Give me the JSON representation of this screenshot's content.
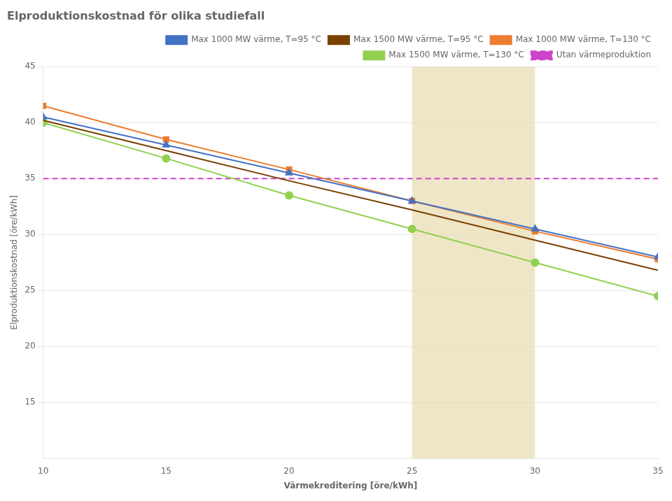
{
  "chart_data": {
    "type": "line",
    "title": "Elproduktionskostnad för olika studiefall",
    "x_label": "Värmekreditering [öre/kWh]",
    "y_label": "Elproduktionskostnad [öre/kWh]",
    "xlim": [
      10,
      35
    ],
    "ylim": [
      10,
      45
    ],
    "xticks": [
      10,
      15,
      20,
      25,
      30,
      35
    ],
    "yticks": [
      15,
      20,
      25,
      30,
      35,
      40,
      45
    ],
    "grid": "y",
    "legend": "upper right",
    "hlines": [
      {
        "name": "Utan värmeproduktion",
        "y": 35.0,
        "color": "#cc44cc",
        "line_style": "dashed"
      }
    ],
    "shaded_x": [
      {
        "from": 25,
        "to": 30,
        "color": "#e8dbb0"
      }
    ],
    "x": [
      10,
      15,
      20,
      25,
      30,
      35
    ],
    "series": [
      {
        "name": "Max 1000 MW värme, T=95 °C",
        "color": "#4472c4",
        "marker": "triangle",
        "values": [
          40.5,
          38.0,
          35.5,
          33.0,
          30.5,
          28.0
        ]
      },
      {
        "name": "Max 1500 MW värme, T=95 °C",
        "color": "#7b3f00",
        "marker": "none",
        "values": [
          40.2,
          37.5,
          34.8,
          32.2,
          29.5,
          26.8
        ]
      },
      {
        "name": "Max 1000 MW värme, T=130 °C",
        "color": "#ed7d31",
        "marker": "square",
        "values": [
          41.5,
          38.5,
          35.8,
          33.0,
          30.3,
          27.8
        ]
      },
      {
        "name": "Max 1500 MW värme, T=130 °C",
        "color": "#92d050",
        "marker": "circle",
        "values": [
          40.0,
          36.8,
          33.5,
          30.5,
          27.5,
          24.5
        ]
      }
    ]
  }
}
